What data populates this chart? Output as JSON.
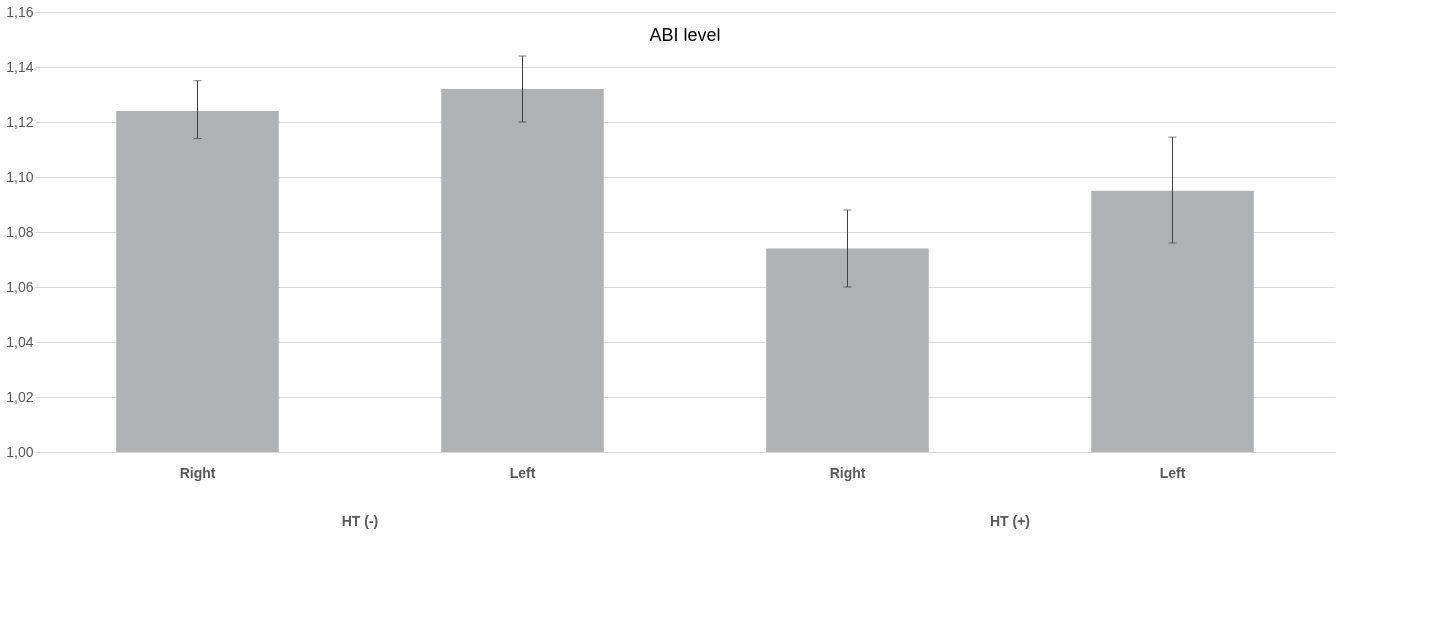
{
  "chart_data": {
    "type": "bar",
    "title": "ABI level",
    "categories": [
      "Right",
      "Left",
      "Right",
      "Left"
    ],
    "values": [
      1.124,
      1.132,
      1.074,
      1.095
    ],
    "errors": [
      [
        1.114,
        1.135
      ],
      [
        1.12,
        1.144
      ],
      [
        1.06,
        1.088
      ],
      [
        1.076,
        1.1145
      ]
    ],
    "color": "#b0b1b4",
    "ylim": [
      1.0,
      1.16
    ],
    "yticks": [
      {
        "value": 1.0,
        "label": "1,00"
      },
      {
        "value": 1.02,
        "label": "1,02"
      },
      {
        "value": 1.04,
        "label": "1,04"
      },
      {
        "value": 1.06,
        "label": "1,06"
      },
      {
        "value": 1.08,
        "label": "1,08"
      },
      {
        "value": 1.1,
        "label": "1,10"
      },
      {
        "value": 1.12,
        "label": "1,12"
      },
      {
        "value": 1.14,
        "label": "1,14"
      },
      {
        "value": 1.16,
        "label": "1,16"
      }
    ],
    "grid": "y",
    "annotations": [
      "HT (-)",
      "HT (+)"
    ]
  }
}
